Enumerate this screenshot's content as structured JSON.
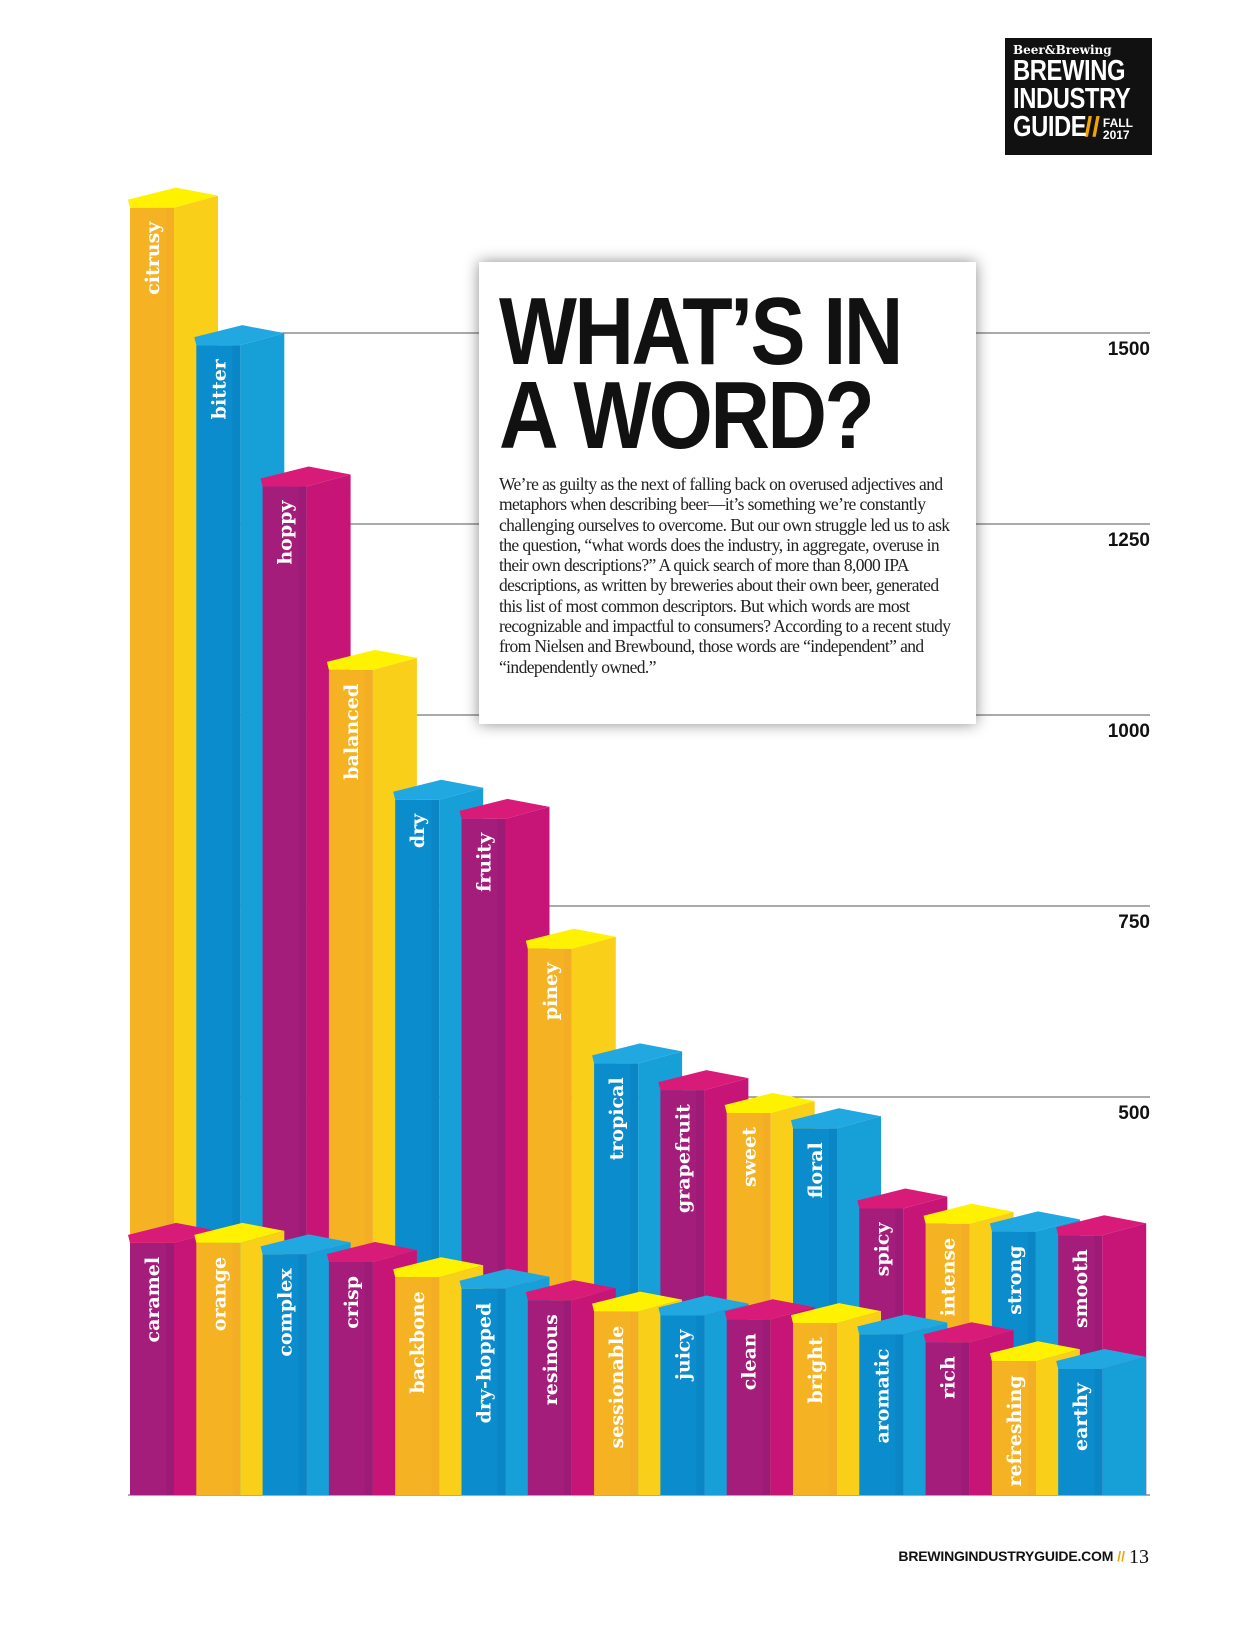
{
  "brand": {
    "magazine": "Beer&Brewing",
    "line1": "BREWING",
    "line2": "INDUSTRY",
    "line3": "GUIDE",
    "slash": "//",
    "season_line1": "FALL",
    "season_line2": "2017"
  },
  "article": {
    "headline_line1": "WHAT’S IN",
    "headline_line2": "A WORD?",
    "body": "We’re as guilty as the next of falling back on overused adjectives and metaphors when describing beer—it’s something we’re constantly challenging ourselves to overcome. But our own struggle led us to ask the question, “what words does the industry, in aggregate, overuse in their own descriptions?” A quick search of more than 8,000 IPA descriptions, as written by breweries about their own beer, generated this list of most common descriptors. But which words are most recognizable and impactful to consumers? According to a recent study from Nielsen and Brewbound, those words are “independent” and “independently owned.”"
  },
  "footer": {
    "site": "BREWINGINDUSTRYGUIDE.COM",
    "separator": "//",
    "page_number": "13"
  },
  "colors": {
    "yellow": "#f5b324",
    "blue": "#0b8ccc",
    "magenta": "#c71577"
  },
  "chart_data": {
    "type": "bar",
    "title": "WHAT’S IN A WORD?",
    "xlabel": "",
    "ylabel": "",
    "yticks": [
      500,
      750,
      1000,
      1250,
      1500
    ],
    "ylim": [
      0,
      1700
    ],
    "grid": true,
    "series": [
      {
        "name": "back row",
        "categories": [
          "citrusy",
          "bitter",
          "hoppy",
          "balanced",
          "dry",
          "fruity",
          "piney",
          "tropical",
          "grapefruit",
          "sweet",
          "floral",
          "spicy",
          "intense",
          "strong",
          "smooth"
        ],
        "values": [
          1685,
          1505,
          1320,
          1080,
          910,
          885,
          715,
          565,
          530,
          500,
          480,
          375,
          355,
          345,
          340
        ],
        "colors": [
          "yellow",
          "blue",
          "magenta",
          "yellow",
          "blue",
          "magenta",
          "yellow",
          "blue",
          "magenta",
          "yellow",
          "blue",
          "magenta",
          "yellow",
          "blue",
          "magenta"
        ]
      },
      {
        "name": "front row",
        "categories": [
          "caramel",
          "orange",
          "complex",
          "crisp",
          "backbone",
          "dry-hopped",
          "resinous",
          "sessionable",
          "juicy",
          "clean",
          "bright",
          "aromatic",
          "rich",
          "refreshing",
          "earthy"
        ],
        "values": [
          330,
          330,
          315,
          305,
          285,
          270,
          255,
          240,
          235,
          230,
          225,
          210,
          200,
          175,
          165
        ],
        "colors": [
          "magenta",
          "yellow",
          "blue",
          "magenta",
          "yellow",
          "blue",
          "magenta",
          "yellow",
          "blue",
          "magenta",
          "yellow",
          "blue",
          "magenta",
          "yellow",
          "blue"
        ]
      }
    ]
  }
}
